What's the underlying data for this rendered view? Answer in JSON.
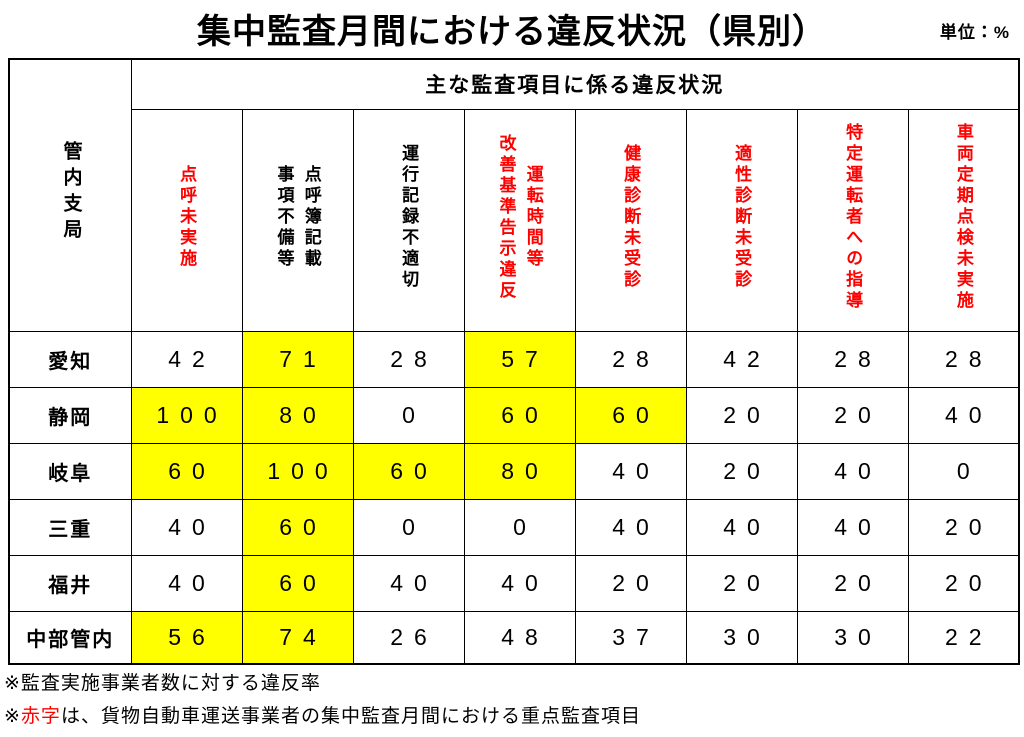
{
  "title": "集中監査月間における違反状況（県別）",
  "unit": "単位：%",
  "colors": {
    "accent_red": "#ff0000",
    "highlight_yellow": "#ffff00",
    "border_black": "#000000"
  },
  "table": {
    "corner_header": "管内支局",
    "group_header": "主な監査項目に係る違反状況",
    "columns": [
      {
        "lines": [
          "点呼未実施"
        ],
        "color": "#ff0000"
      },
      {
        "lines": [
          "点呼簿記載",
          "事項不備等"
        ],
        "color": "#000000"
      },
      {
        "lines": [
          "運行記録不適切"
        ],
        "color": "#000000"
      },
      {
        "lines": [
          "運転時間等",
          "改善基準告示違反"
        ],
        "color": "#ff0000"
      },
      {
        "lines": [
          "健康診断未受診"
        ],
        "color": "#ff0000"
      },
      {
        "lines": [
          "適性診断未受診"
        ],
        "color": "#ff0000"
      },
      {
        "lines": [
          "特定運転者への指導"
        ],
        "color": "#ff0000"
      },
      {
        "lines": [
          "車両定期点検未実施"
        ],
        "color": "#ff0000"
      }
    ],
    "rows": [
      {
        "label": "愛知",
        "values": [
          "42",
          "71",
          "28",
          "57",
          "28",
          "42",
          "28",
          "28"
        ],
        "highlight": [
          false,
          true,
          false,
          true,
          false,
          false,
          false,
          false
        ]
      },
      {
        "label": "静岡",
        "values": [
          "100",
          "80",
          "0",
          "60",
          "60",
          "20",
          "20",
          "40"
        ],
        "highlight": [
          true,
          true,
          false,
          true,
          true,
          false,
          false,
          false
        ]
      },
      {
        "label": "岐阜",
        "values": [
          "60",
          "100",
          "60",
          "80",
          "40",
          "20",
          "40",
          "0"
        ],
        "highlight": [
          true,
          true,
          true,
          true,
          false,
          false,
          false,
          false
        ]
      },
      {
        "label": "三重",
        "values": [
          "40",
          "60",
          "0",
          "0",
          "40",
          "40",
          "40",
          "20"
        ],
        "highlight": [
          false,
          true,
          false,
          false,
          false,
          false,
          false,
          false
        ]
      },
      {
        "label": "福井",
        "values": [
          "40",
          "60",
          "40",
          "40",
          "20",
          "20",
          "20",
          "20"
        ],
        "highlight": [
          false,
          true,
          false,
          false,
          false,
          false,
          false,
          false
        ]
      },
      {
        "label": "中部管内",
        "values": [
          "56",
          "74",
          "26",
          "48",
          "37",
          "30",
          "30",
          "22"
        ],
        "highlight": [
          true,
          true,
          false,
          false,
          false,
          false,
          false,
          false
        ]
      }
    ]
  },
  "notes": {
    "note1": "※監査実施事業者数に対する違反率",
    "note2_prefix": "※",
    "note2_red": "赤字",
    "note2_suffix": "は、貨物自動車運送事業者の集中監査月間における重点監査項目"
  }
}
